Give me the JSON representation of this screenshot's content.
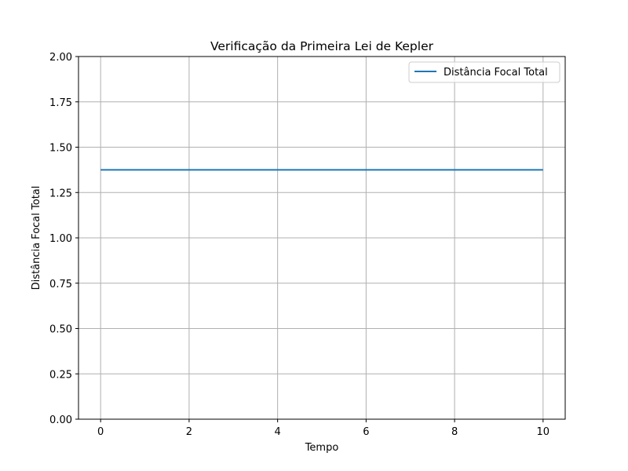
{
  "chart_data": {
    "type": "line",
    "title": "Verificação da Primeira Lei de Kepler",
    "xlabel": "Tempo",
    "ylabel": "Distância Focal Total",
    "xlim": [
      -0.5,
      10.5
    ],
    "ylim": [
      0,
      2.0
    ],
    "xticks": [
      0,
      2,
      4,
      6,
      8,
      10
    ],
    "xtick_labels": [
      "0",
      "2",
      "4",
      "6",
      "8",
      "10"
    ],
    "yticks": [
      0,
      0.25,
      0.5,
      0.75,
      1.0,
      1.25,
      1.5,
      1.75,
      2.0
    ],
    "ytick_labels": [
      "0.00",
      "0.25",
      "0.50",
      "0.75",
      "1.00",
      "1.25",
      "1.50",
      "1.75",
      "2.00"
    ],
    "grid": true,
    "legend_position": "upper right",
    "series": [
      {
        "name": "Distância Focal Total",
        "color": "#1f77b4",
        "x": [
          0,
          10
        ],
        "y": [
          1.375,
          1.375
        ]
      }
    ]
  }
}
